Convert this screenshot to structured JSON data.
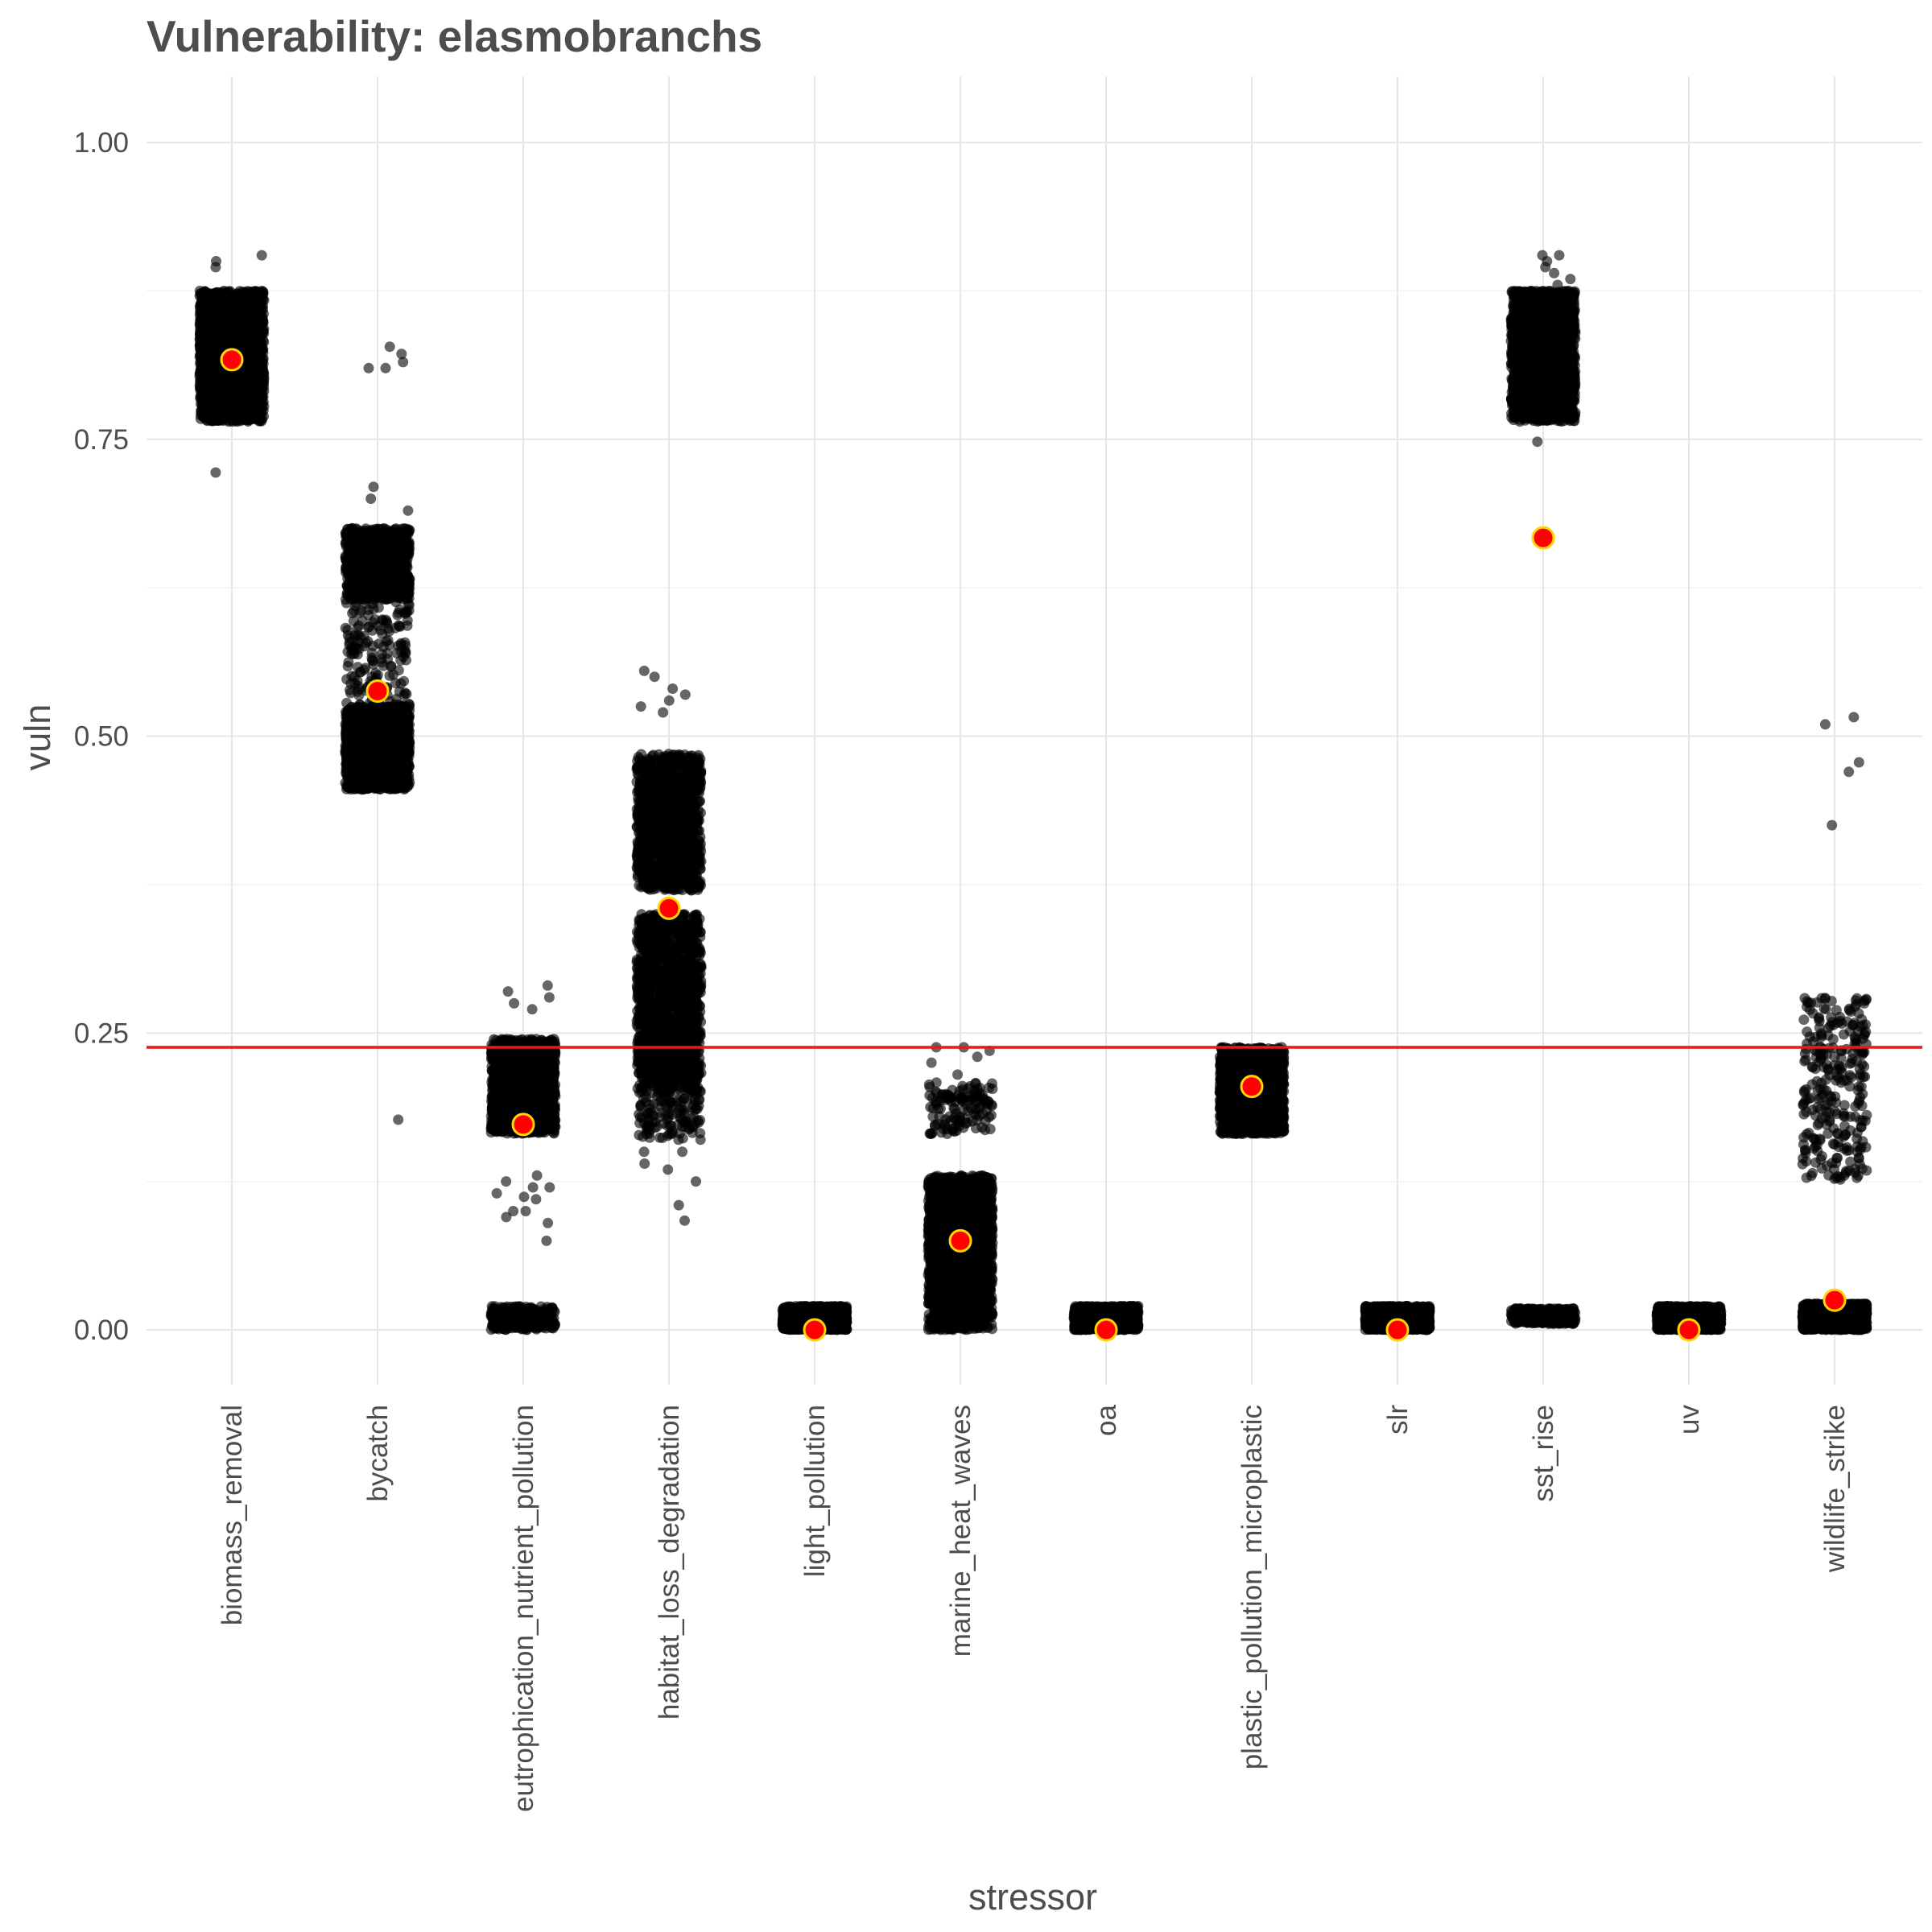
{
  "chart_data": {
    "type": "scatter",
    "title": "Vulnerability: elasmobranchs",
    "xlabel": "stressor",
    "ylabel": "vuln",
    "ylim": [
      -0.07,
      1.05
    ],
    "yticks": [
      0,
      0.25,
      0.5,
      0.75,
      1.0
    ],
    "ytick_labels": [
      "0.00",
      "0.25",
      "0.50",
      "0.75",
      "1.00"
    ],
    "categories": [
      "biomass_removal",
      "bycatch",
      "eutrophication_nutrient_pollution",
      "habitat_loss_degradation",
      "light_pollution",
      "marine_heat_waves",
      "oa",
      "plastic_pollution_microplastic",
      "slr",
      "sst_rise",
      "uv",
      "wildlife_strike"
    ],
    "reference_line": {
      "y": 0.238,
      "color": "#e41a1c"
    },
    "grid": true,
    "series": [
      {
        "kind": "jittered_points",
        "color": "#000000",
        "opacity": 0.6,
        "clusters": [
          {
            "category": "biomass_removal",
            "ranges": [
              [
                0.765,
                0.875,
                2200
              ]
            ],
            "extra": [
              0.722,
              0.895,
              0.9,
              0.905
            ]
          },
          {
            "category": "bycatch",
            "ranges": [
              [
                0.455,
                0.525,
                1500
              ],
              [
                0.525,
                0.62,
                180
              ],
              [
                0.615,
                0.675,
                900
              ]
            ],
            "extra": [
              0.177,
              0.81,
              0.81,
              0.815,
              0.822,
              0.828,
              0.69,
              0.7,
              0.71
            ]
          },
          {
            "category": "eutrophication_nutrient_pollution",
            "ranges": [
              [
                0.165,
                0.245,
                1500
              ],
              [
                0.0,
                0.02,
                260
              ]
            ],
            "extra": [
              0.075,
              0.09,
              0.095,
              0.1,
              0.1,
              0.11,
              0.112,
              0.115,
              0.12,
              0.12,
              0.125,
              0.13,
              0.27,
              0.275,
              0.28,
              0.285,
              0.29
            ]
          },
          {
            "category": "habitat_loss_degradation",
            "ranges": [
              [
                0.2,
                0.35,
                1400
              ],
              [
                0.37,
                0.485,
                1200
              ],
              [
                0.16,
                0.2,
                120
              ]
            ],
            "extra": [
              0.092,
              0.105,
              0.125,
              0.135,
              0.14,
              0.15,
              0.15,
              0.52,
              0.525,
              0.53,
              0.535,
              0.54,
              0.55,
              0.555
            ]
          },
          {
            "category": "light_pollution",
            "ranges": [
              [
                0.0,
                0.02,
                1400
              ]
            ],
            "extra": []
          },
          {
            "category": "marine_heat_waves",
            "ranges": [
              [
                0.0,
                0.13,
                1900
              ],
              [
                0.165,
                0.21,
                130
              ]
            ],
            "extra": [
              0.215,
              0.225,
              0.23,
              0.235,
              0.238,
              0.238
            ]
          },
          {
            "category": "oa",
            "ranges": [
              [
                0.0,
                0.02,
                1400
              ]
            ],
            "extra": []
          },
          {
            "category": "plastic_pollution_microplastic",
            "ranges": [
              [
                0.165,
                0.238,
                1700
              ]
            ],
            "extra": []
          },
          {
            "category": "slr",
            "ranges": [
              [
                0.0,
                0.02,
                1400
              ]
            ],
            "extra": []
          },
          {
            "category": "sst_rise",
            "ranges": [
              [
                0.765,
                0.875,
                1900
              ],
              [
                0.005,
                0.018,
                300
              ]
            ],
            "extra": [
              0.748,
              0.88,
              0.885,
              0.89,
              0.895,
              0.9,
              0.905,
              0.905
            ]
          },
          {
            "category": "uv",
            "ranges": [
              [
                0.0,
                0.02,
                1400
              ]
            ],
            "extra": []
          },
          {
            "category": "wildlife_strike",
            "ranges": [
              [
                0.0,
                0.022,
                1400
              ],
              [
                0.125,
                0.28,
                280
              ]
            ],
            "extra": [
              0.425,
              0.47,
              0.478,
              0.51,
              0.516
            ]
          }
        ]
      },
      {
        "kind": "summary_points",
        "fill": "#ff0000",
        "stroke": "#ffd700",
        "values": [
          0.817,
          0.538,
          0.173,
          0.355,
          0.0,
          0.075,
          0.0,
          0.205,
          0.0,
          0.667,
          0.0,
          0.025
        ]
      }
    ]
  }
}
